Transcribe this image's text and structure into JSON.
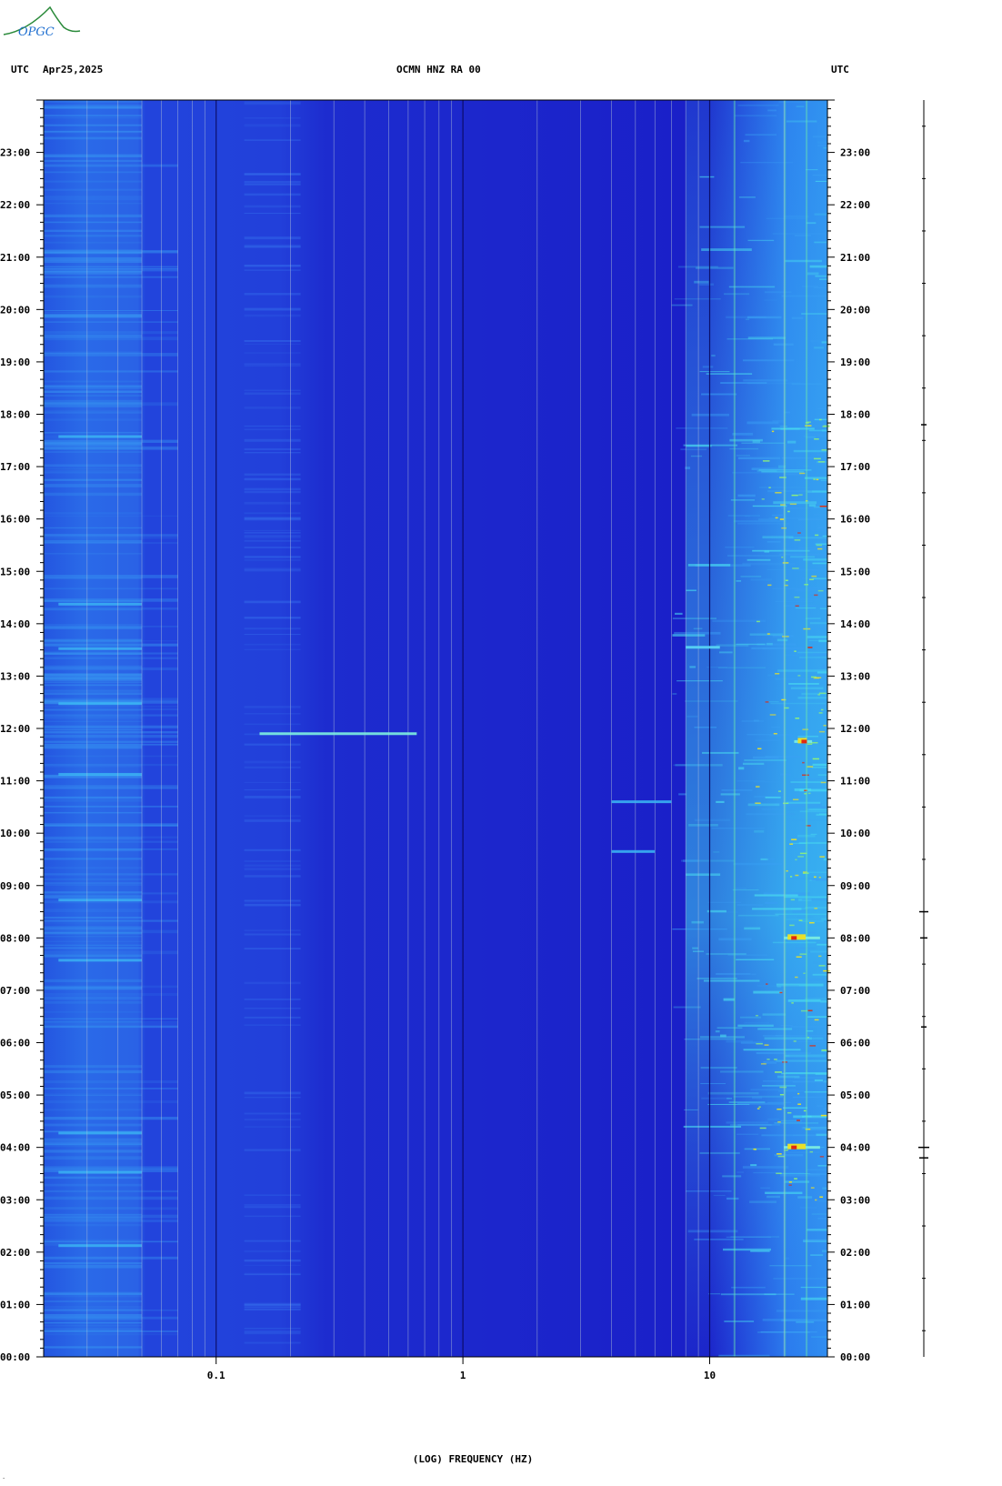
{
  "header": {
    "left_tz": "UTC",
    "date": "Apr25,2025",
    "station": "OCMN HNZ RA 00",
    "right_tz": "UTC"
  },
  "logo": {
    "text": "OPGC"
  },
  "colors": {
    "background": "#1a1fc8",
    "low_band": "#2a5ae6",
    "mid_band": "#1d30d2",
    "high_noise": "#2fa0f2",
    "event_yellow": "#e8e02a",
    "event_red": "#e02a10",
    "gridline": "#b8c8d8"
  },
  "chart_data": {
    "type": "heatmap",
    "title": "",
    "xlabel": "(LOG) FREQUENCY (HZ)",
    "ylabel": "",
    "x_scale": "log",
    "x_range": [
      0.02,
      30
    ],
    "x_ticks": [
      {
        "value": 0.1,
        "label": "0.1"
      },
      {
        "value": 1,
        "label": "1"
      },
      {
        "value": 10,
        "label": "10"
      }
    ],
    "y_range": [
      "00:00",
      "24:00"
    ],
    "y_ticks": [
      "00:00",
      "01:00",
      "02:00",
      "03:00",
      "04:00",
      "05:00",
      "06:00",
      "07:00",
      "08:00",
      "09:00",
      "10:00",
      "11:00",
      "12:00",
      "13:00",
      "14:00",
      "15:00",
      "16:00",
      "17:00",
      "18:00",
      "19:00",
      "20:00",
      "21:00",
      "22:00",
      "23:00"
    ],
    "gridlines_hz": [
      0.03,
      0.04,
      0.05,
      0.06,
      0.07,
      0.08,
      0.09,
      0.1,
      0.2,
      0.3,
      0.4,
      0.5,
      0.6,
      0.7,
      0.8,
      0.9,
      1,
      2,
      3,
      4,
      5,
      6,
      7,
      8,
      9,
      10,
      20,
      30
    ],
    "events": [
      {
        "time_h": 11.9,
        "f_start": 0.15,
        "f_end": 0.65,
        "intensity": "high"
      },
      {
        "time_h": 13.55,
        "f_start": 8,
        "f_end": 11,
        "intensity": "medium"
      },
      {
        "time_h": 10.6,
        "f_start": 4,
        "f_end": 7,
        "intensity": "low"
      },
      {
        "time_h": 9.65,
        "f_start": 4,
        "f_end": 6,
        "intensity": "low"
      },
      {
        "time_h": 4.0,
        "f_start": 20,
        "f_end": 28,
        "intensity": "high"
      },
      {
        "time_h": 8.0,
        "f_start": 20,
        "f_end": 28,
        "intensity": "high"
      },
      {
        "time_h": 11.75,
        "f_start": 22,
        "f_end": 26,
        "intensity": "high"
      }
    ]
  }
}
